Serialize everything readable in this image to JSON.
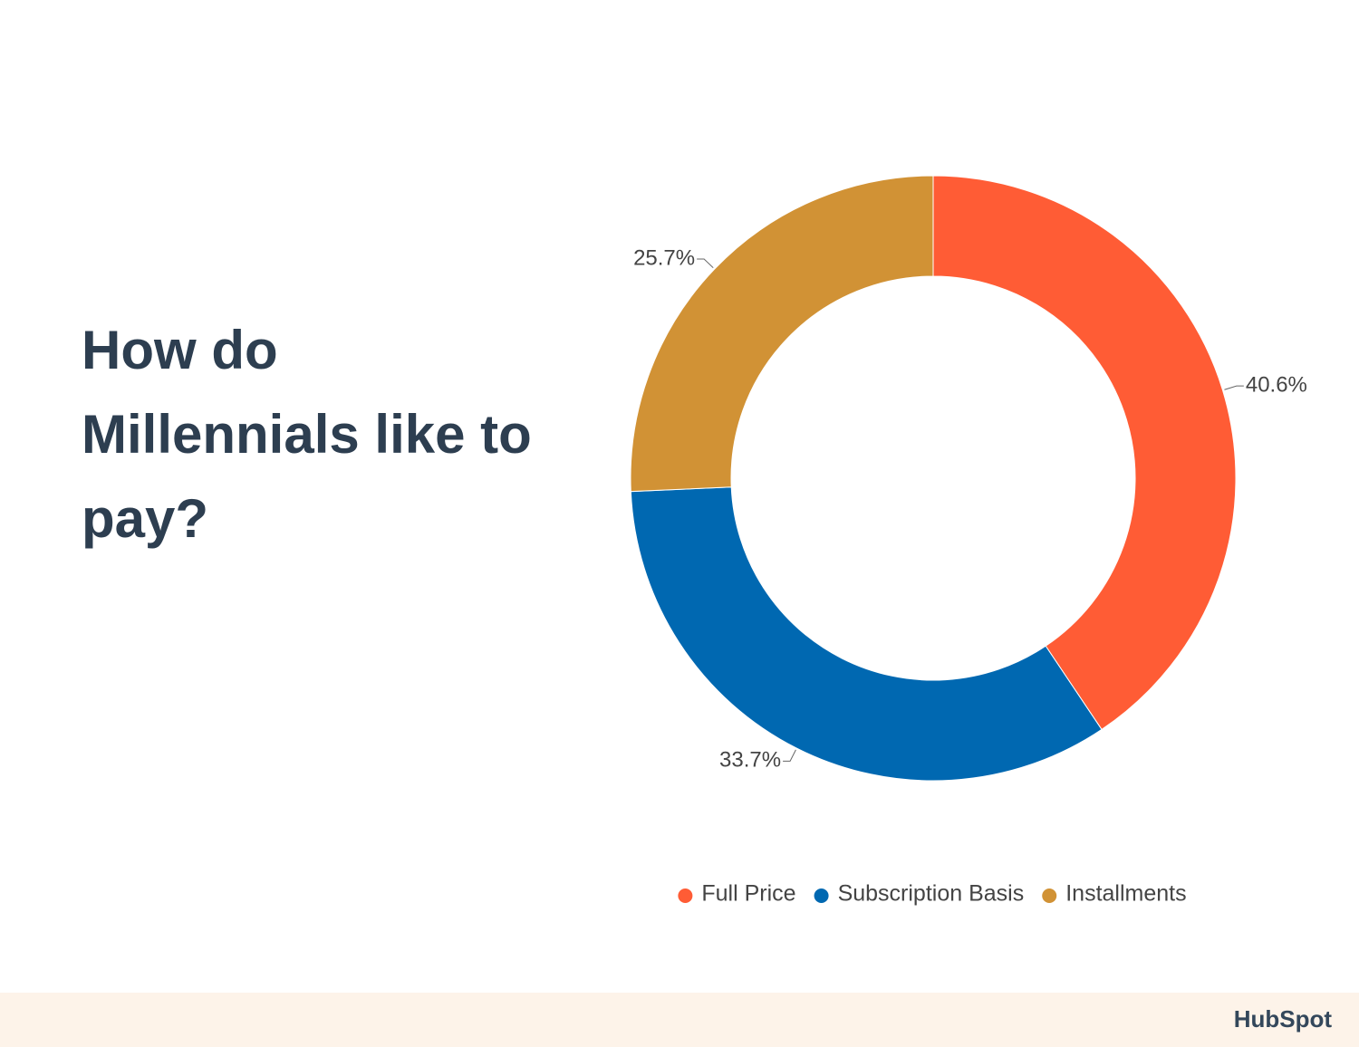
{
  "chart_data": {
    "type": "donut",
    "title": "How do Millennials like to pay?",
    "categories": [
      "Full Price",
      "Subscription Basis",
      "Installments"
    ],
    "values": [
      40.6,
      33.7,
      25.7
    ],
    "value_labels": [
      "40.6%",
      "33.7%",
      "25.7%"
    ],
    "colors": [
      "#ff5c35",
      "#0068b1",
      "#d19235"
    ],
    "legend": "bottom"
  },
  "footer": {
    "brand": "HubSpot"
  }
}
